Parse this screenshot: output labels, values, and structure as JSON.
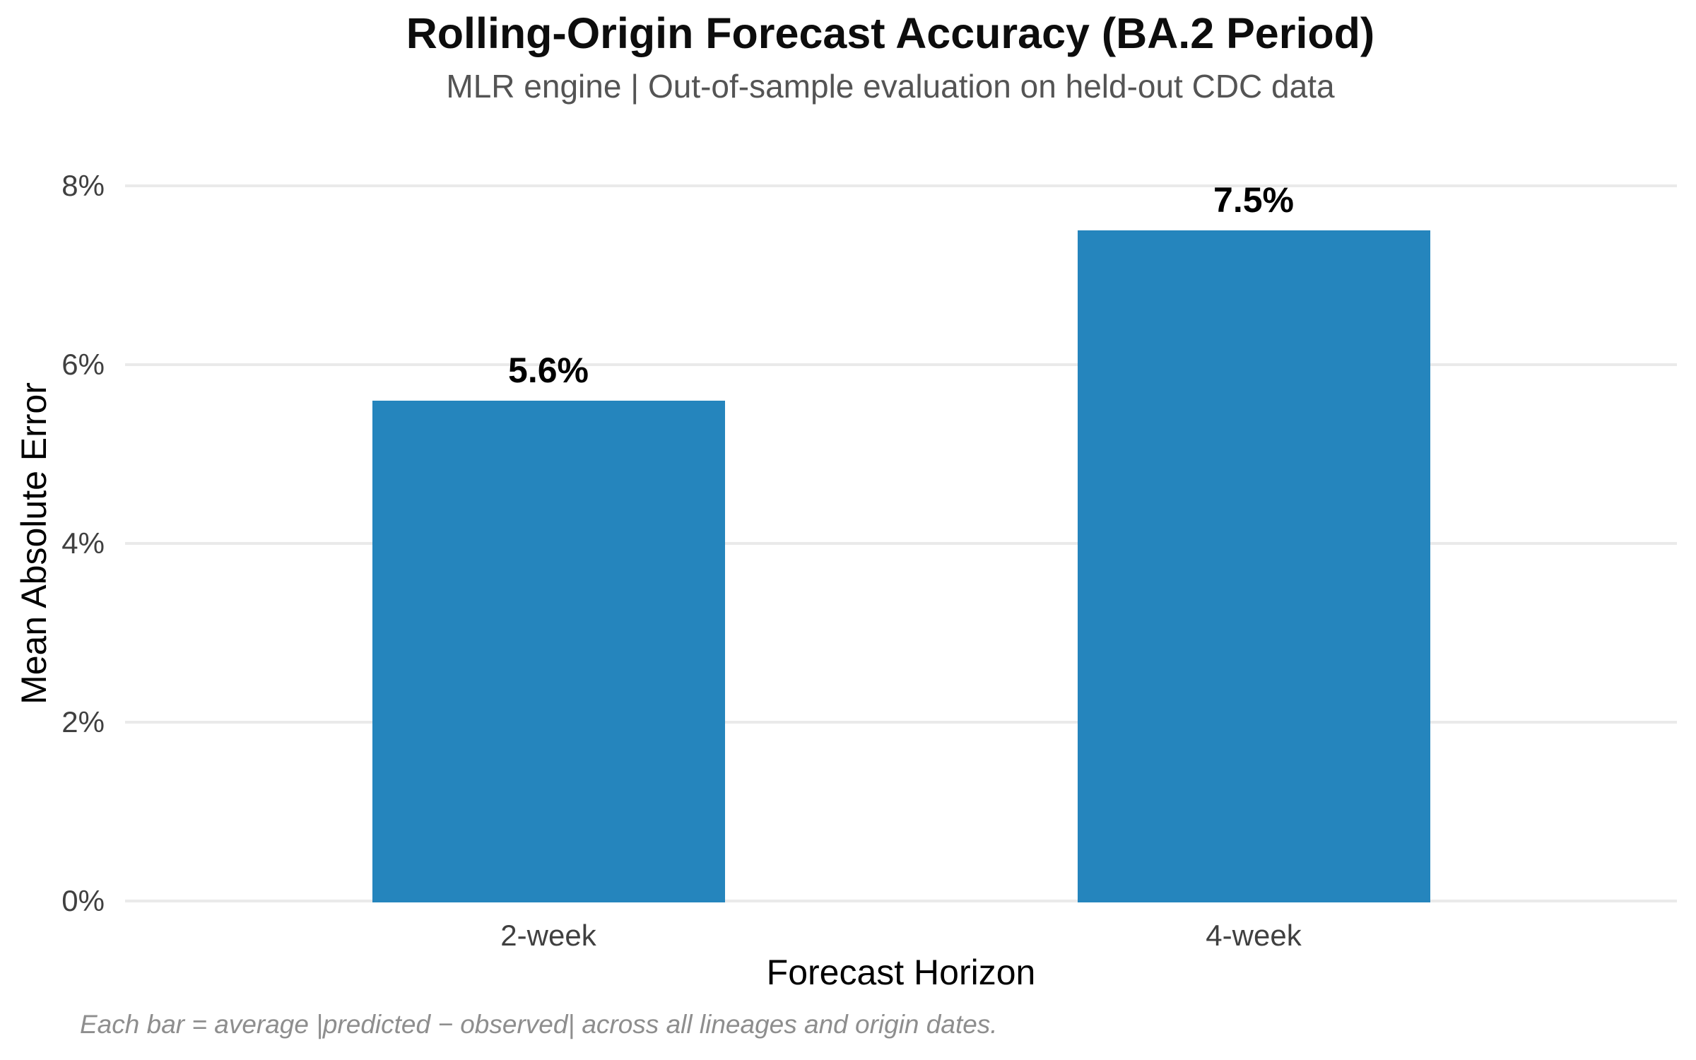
{
  "chart_data": {
    "type": "bar",
    "title": "Rolling-Origin Forecast Accuracy (BA.2 Period)",
    "subtitle": "MLR engine | Out-of-sample evaluation on held-out CDC data",
    "categories": [
      "2-week",
      "4-week"
    ],
    "values": [
      5.6,
      7.5
    ],
    "value_labels": [
      "5.6%",
      "7.5%"
    ],
    "xlabel": "Forecast Horizon",
    "ylabel": "Mean Absolute Error",
    "ylim": [
      0,
      8
    ],
    "yticks": [
      {
        "value": 0,
        "label": "0%"
      },
      {
        "value": 2,
        "label": "2%"
      },
      {
        "value": 4,
        "label": "4%"
      },
      {
        "value": 6,
        "label": "6%"
      },
      {
        "value": 8,
        "label": "8%"
      }
    ],
    "grid": "horizontal",
    "legend_position": "none",
    "bar_color": "#2585bd",
    "gridline_color": "#eaeaea",
    "footnote": "Each bar = average |predicted − observed| across all lineages and origin dates."
  }
}
